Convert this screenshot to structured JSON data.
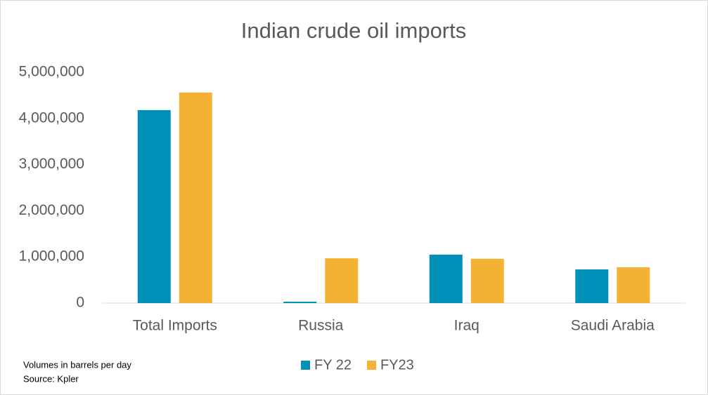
{
  "chart_data": {
    "type": "bar",
    "title": "Indian crude oil imports",
    "categories": [
      "Total Imports",
      "Russia",
      "Iraq",
      "Saudi Arabia"
    ],
    "series": [
      {
        "name": "FY 22",
        "color": "#0090b8",
        "values": [
          4180000,
          30000,
          1050000,
          730000
        ]
      },
      {
        "name": "FY23",
        "color": "#f4b234",
        "values": [
          4560000,
          970000,
          960000,
          775000
        ]
      }
    ],
    "ylim": [
      0,
      5000000
    ],
    "yticks": [
      0,
      {
        "value": 1000000,
        "label": "1,000,000"
      },
      {
        "value": 2000000,
        "label": "2,000,000"
      },
      {
        "value": 3000000,
        "label": "3,000,000"
      },
      {
        "value": 4000000,
        "label": "4,000,000"
      },
      {
        "value": 5000000,
        "label": "5,000,000"
      }
    ],
    "grid": false,
    "legend": "bottom",
    "notes": [
      "Volumes in barrels per day",
      "Source: Kpler"
    ]
  }
}
